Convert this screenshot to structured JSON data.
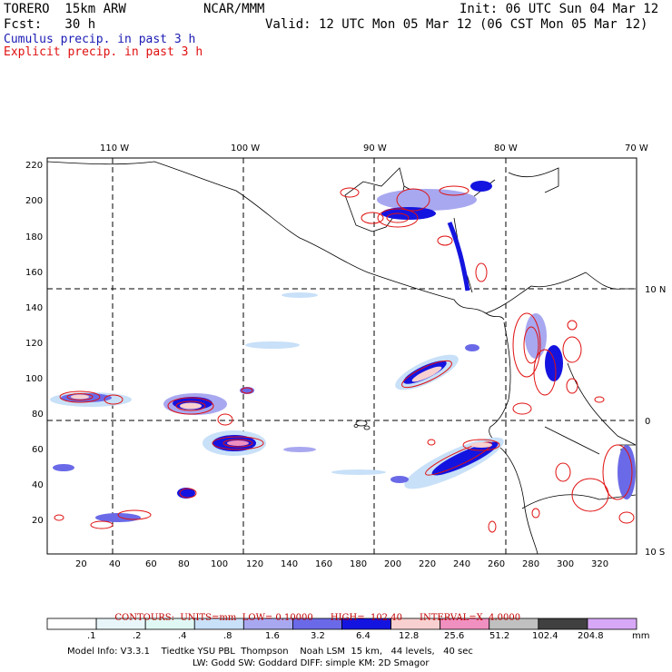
{
  "header": {
    "model": "TORERO  15km ARW",
    "org": "NCAR/MMM",
    "init": "Init: 06 UTC Sun 04 Mar 12",
    "fcst": "Fcst:   30 h",
    "valid": "Valid: 12 UTC Mon 05 Mar 12 (06 CST Mon 05 Mar 12)",
    "cumulus_title": "Cumulus precip. in past 3 h",
    "explicit_title": "Explicit precip. in past 3 h"
  },
  "colors": {
    "cumulus": "#1a1ab4",
    "explicit": "#e01010",
    "bins": [
      "#ffffff",
      "#e8f6fa",
      "#e0f8f4",
      "#c8e0f8",
      "#a8a8f0",
      "#6a6ae8",
      "#1414e0",
      "#f8d0d0",
      "#f090c0",
      "#c0c0c0",
      "#404040",
      "#d8a8f8"
    ]
  },
  "map": {
    "top_lon_labels": [
      "110 W",
      "100 W",
      "90 W",
      "80 W",
      "70 W"
    ],
    "right_lat_labels": [
      "10 N",
      "0",
      "10 S"
    ],
    "y_grid_labels": [
      "220",
      "200",
      "180",
      "160",
      "140",
      "120",
      "100",
      "80",
      "60",
      "40",
      "20"
    ],
    "x_grid_labels": [
      "20",
      "40",
      "60",
      "80",
      "100",
      "120",
      "140",
      "160",
      "180",
      "200",
      "220",
      "240",
      "260",
      "280",
      "300",
      "320"
    ]
  },
  "contour_info": {
    "label": "CONTOURS:",
    "units": "UNITS=mm",
    "low": "LOW= 0.10000",
    "high": "HIGH=  102.40",
    "interval": "INTERVAL=X  4.0000"
  },
  "colorbar": {
    "thresholds": [
      ".1",
      ".2",
      ".4",
      ".8",
      "1.6",
      "3.2",
      "6.4",
      "12.8",
      "25.6",
      "51.2",
      "102.4",
      "204.8"
    ],
    "unit": "mm"
  },
  "footer": {
    "line1": "Model Info: V3.3.1    Tiedtke YSU PBL  Thompson    Noah LSM  15 km,   44 levels,   40 sec",
    "line2": "LW: Godd SW: Goddard DIFF: simple KM: 2D Smagor"
  }
}
